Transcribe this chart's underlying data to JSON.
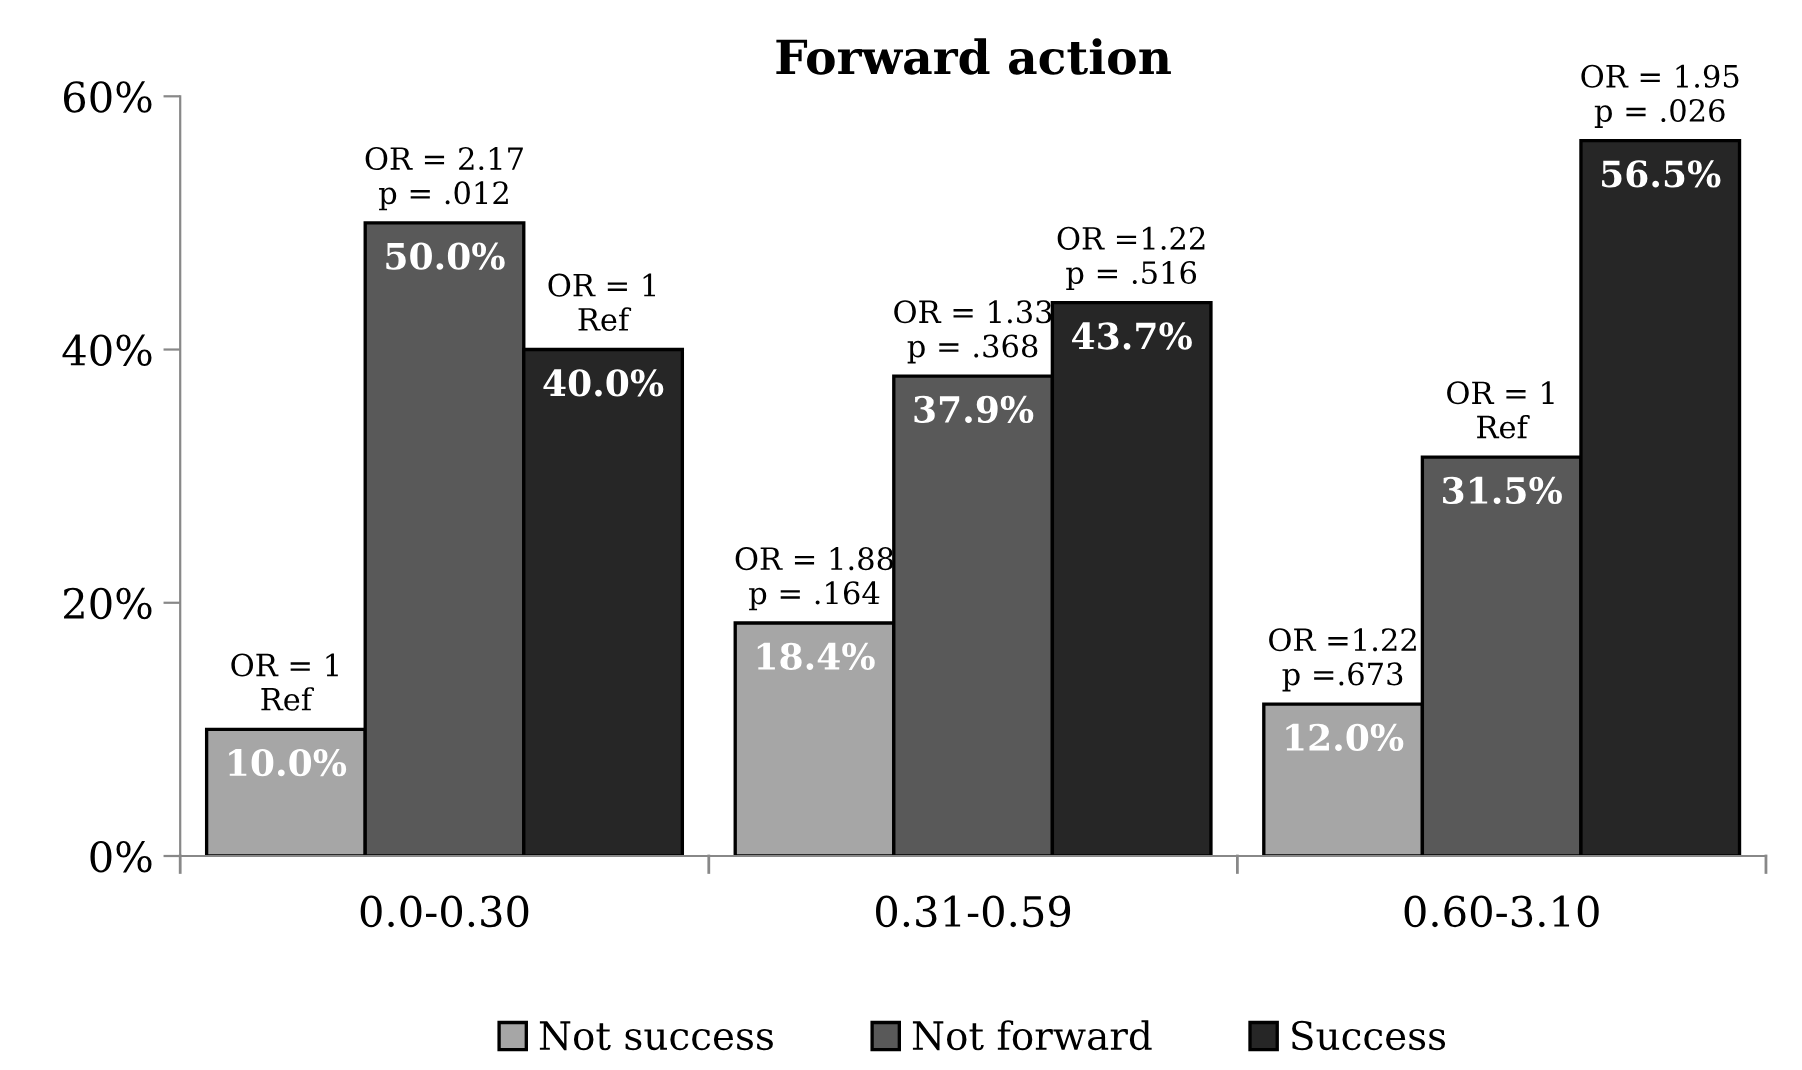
{
  "chart_data": {
    "type": "bar",
    "title": "Forward action",
    "categories": [
      "0.0-0.30",
      "0.31-0.59",
      "0.60-3.10"
    ],
    "series": [
      {
        "name": "Not success",
        "color": "#a6a6a6",
        "values": [
          10.0,
          18.4,
          12.0
        ],
        "value_labels": [
          "10.0%",
          "18.4%",
          "12.0%"
        ]
      },
      {
        "name": "Not forward",
        "color": "#595959",
        "values": [
          50.0,
          37.9,
          31.5
        ],
        "value_labels": [
          "50.0%",
          "37.9%",
          "31.5%"
        ]
      },
      {
        "name": "Success",
        "color": "#262626",
        "values": [
          40.0,
          43.7,
          56.5
        ],
        "value_labels": [
          "40.0%",
          "43.7%",
          "56.5%"
        ]
      }
    ],
    "annotations": [
      "OR = 1\nRef",
      "OR = 2.17\np = .012",
      "OR = 1\nRef",
      "OR = 1.88\np = .164",
      "OR = 1.33\np = .368",
      "OR =1.22\np = .516",
      "OR =1.22\np =.673",
      "OR = 1\nRef",
      "OR = 1.95\np = .026"
    ],
    "ylim": [
      0,
      60
    ],
    "yticks": [
      {
        "value": 0,
        "label": "0%"
      },
      {
        "value": 20,
        "label": "20%"
      },
      {
        "value": 40,
        "label": "40%"
      },
      {
        "value": 60,
        "label": "60%"
      }
    ],
    "grid": false,
    "legend": "bottom"
  }
}
